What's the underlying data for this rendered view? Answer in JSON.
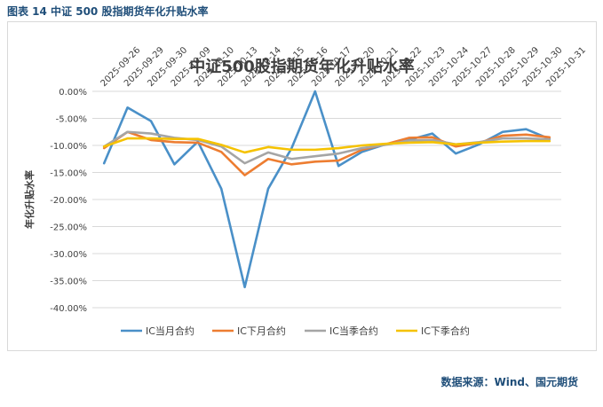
{
  "figure_label": "图表 14 中证 500 股指期货年化升贴水率",
  "source_note": "数据来源：Wind、国元期货",
  "chart_data": {
    "type": "line",
    "title": "中证500股指期货年化升贴水率",
    "xlabel": "",
    "ylabel": "年化升贴水率",
    "ylim": [
      -40,
      0
    ],
    "yticks": [
      0,
      -5,
      -10,
      -15,
      -20,
      -25,
      -30,
      -35,
      -40
    ],
    "ytick_labels": [
      "0.00%",
      "-5.00%",
      "-10.00%",
      "-15.00%",
      "-20.00%",
      "-25.00%",
      "-30.00%",
      "-35.00%",
      "-40.00%"
    ],
    "grid": true,
    "legend_position": "bottom",
    "categories": [
      "2025-09-26",
      "2025-09-29",
      "2025-09-30",
      "2025-10-09",
      "2025-10-10",
      "2025-10-13",
      "2025-10-14",
      "2025-10-15",
      "2025-10-16",
      "2025-10-17",
      "2025-10-20",
      "2025-10-21",
      "2025-10-22",
      "2025-10-23",
      "2025-10-24",
      "2025-10-27",
      "2025-10-28",
      "2025-10-29",
      "2025-10-30",
      "2025-10-31"
    ],
    "series": [
      {
        "name": "IC当月合约",
        "color": "#4a90c8",
        "values": [
          -13.3,
          -3.0,
          -5.5,
          -13.5,
          -9.3,
          -18.0,
          -36.2,
          -18.0,
          -10.5,
          0.0,
          -13.8,
          -11.2,
          -9.8,
          -9.0,
          -7.8,
          -11.5,
          -9.8,
          -7.5,
          -7.0,
          -8.8
        ]
      },
      {
        "name": "IC下月合约",
        "color": "#ed7d31",
        "values": [
          -10.5,
          -7.5,
          -9.0,
          -9.4,
          -9.5,
          -11.2,
          -15.5,
          -12.5,
          -13.5,
          -13.0,
          -12.8,
          -10.8,
          -9.8,
          -8.6,
          -8.5,
          -10.2,
          -9.5,
          -8.2,
          -8.0,
          -8.5
        ]
      },
      {
        "name": "IC当季合约",
        "color": "#a5a5a5",
        "values": [
          -10.2,
          -7.5,
          -7.8,
          -8.6,
          -9.0,
          -10.2,
          -13.3,
          -11.3,
          -12.5,
          -12.0,
          -11.5,
          -10.5,
          -9.9,
          -9.1,
          -9.0,
          -9.8,
          -9.4,
          -8.7,
          -8.7,
          -8.9
        ]
      },
      {
        "name": "IC下季合约",
        "color": "#f5c200",
        "values": [
          -10.2,
          -8.7,
          -8.7,
          -8.8,
          -8.8,
          -9.9,
          -11.3,
          -10.3,
          -10.8,
          -10.8,
          -10.5,
          -10.0,
          -9.7,
          -9.5,
          -9.4,
          -9.8,
          -9.5,
          -9.3,
          -9.2,
          -9.2
        ]
      }
    ]
  }
}
